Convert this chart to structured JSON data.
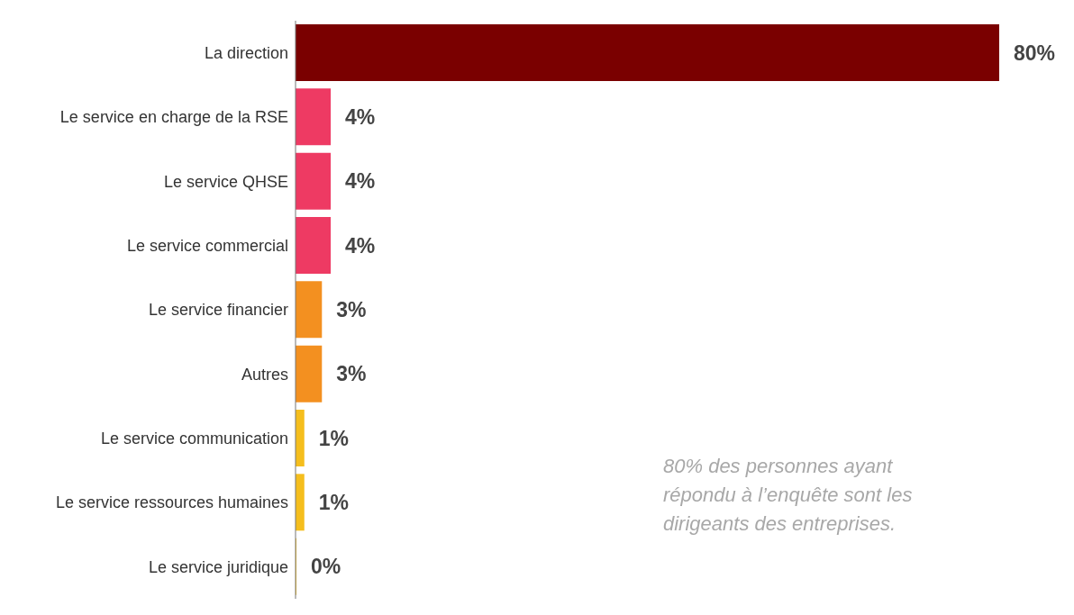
{
  "chart_data": {
    "type": "bar",
    "orientation": "horizontal",
    "categories": [
      "La direction",
      "Le service en charge de la RSE",
      "Le service QHSE",
      "Le service commercial",
      "Le service financier",
      "Autres",
      "Le service communication",
      "Le service ressources humaines",
      "Le service juridique"
    ],
    "values": [
      80,
      4,
      4,
      4,
      3,
      3,
      1,
      1,
      0
    ],
    "colors": [
      "#7a0000",
      "#ee3a63",
      "#ee3a63",
      "#ee3a63",
      "#f39020",
      "#f39020",
      "#f5be1d",
      "#f5be1d",
      "#f5be1d"
    ],
    "value_labels": [
      "80%",
      "4%",
      "4%",
      "4%",
      "3%",
      "3%",
      "1%",
      "1%",
      "0%"
    ],
    "annotations": [
      "80% des personnes ayant répondu à l’enquête sont les dirigeants des entreprises."
    ],
    "grid": false,
    "legend": false
  }
}
